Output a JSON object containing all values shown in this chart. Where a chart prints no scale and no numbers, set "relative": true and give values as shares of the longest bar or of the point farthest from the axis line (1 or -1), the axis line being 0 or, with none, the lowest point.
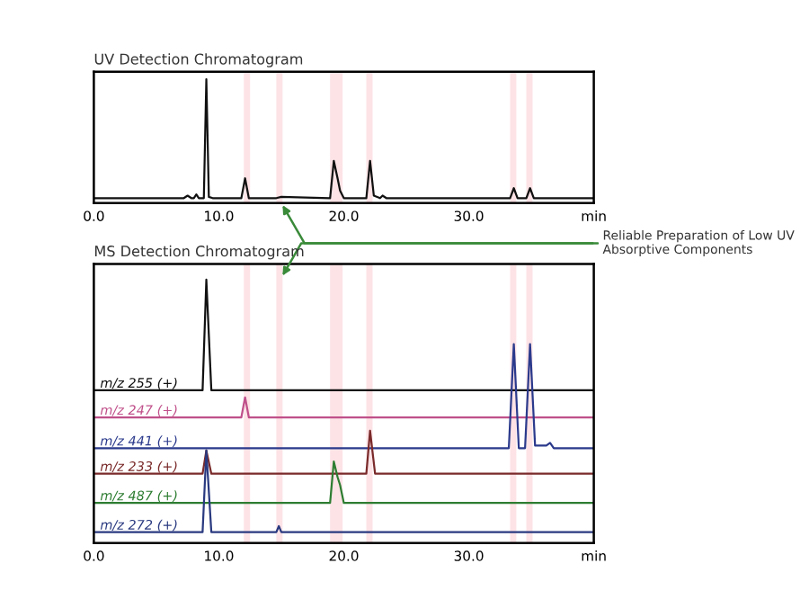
{
  "chart_data": [
    {
      "type": "line",
      "title": "UV Detection Chromatogram",
      "relative": true,
      "xlim": [
        0,
        40
      ],
      "xticks": [
        {
          "value": 0,
          "label": "0.0"
        },
        {
          "value": 10,
          "label": "10.0"
        },
        {
          "value": 20,
          "label": "20.0"
        },
        {
          "value": 30,
          "label": "30.0"
        },
        {
          "value": 40,
          "label": "min"
        }
      ],
      "legend": false,
      "grid": false,
      "bands": [
        {
          "axis": "x",
          "from": 12.0,
          "to": 12.5,
          "color": "#fde3e6"
        },
        {
          "axis": "x",
          "from": 14.6,
          "to": 15.1,
          "color": "#fde3e6"
        },
        {
          "axis": "x",
          "from": 18.9,
          "to": 19.9,
          "color": "#fde3e6"
        },
        {
          "axis": "x",
          "from": 21.8,
          "to": 22.3,
          "color": "#fde3e6"
        },
        {
          "axis": "x",
          "from": 33.3,
          "to": 33.8,
          "color": "#fde3e6"
        },
        {
          "axis": "x",
          "from": 34.6,
          "to": 35.1,
          "color": "#fde3e6"
        }
      ],
      "annotations": [
        {
          "text": "Reliable Preparation of Low UV\nAbsorptive Components",
          "x": 15,
          "y": 0
        }
      ],
      "series": [
        {
          "color": "#111111",
          "x": [
            0,
            7.2,
            7.5,
            7.8,
            8.0,
            8.2,
            8.4,
            8.8,
            9.0,
            9.2,
            9.5,
            11.8,
            12.1,
            12.4,
            14.6,
            15.0,
            18.9,
            19.2,
            19.5,
            19.7,
            20.0,
            21.8,
            22.1,
            22.4,
            22.9,
            23.1,
            23.4,
            33.3,
            33.6,
            33.9,
            34.6,
            34.9,
            35.2,
            40
          ],
          "values": [
            0.04,
            0.04,
            0.06,
            0.04,
            0.04,
            0.07,
            0.04,
            0.04,
            1.0,
            0.05,
            0.04,
            0.04,
            0.2,
            0.04,
            0.04,
            0.05,
            0.04,
            0.34,
            0.2,
            0.1,
            0.04,
            0.04,
            0.34,
            0.06,
            0.04,
            0.06,
            0.04,
            0.04,
            0.12,
            0.04,
            0.04,
            0.12,
            0.04,
            0.04
          ]
        }
      ]
    },
    {
      "type": "line",
      "title": "MS Detection Chromatogram",
      "relative": true,
      "xlim": [
        0,
        40
      ],
      "xticks": [
        {
          "value": 0,
          "label": "0.0"
        },
        {
          "value": 10,
          "label": "10.0"
        },
        {
          "value": 20,
          "label": "20.0"
        },
        {
          "value": 30,
          "label": "30.0"
        },
        {
          "value": 40,
          "label": "min"
        }
      ],
      "legend": false,
      "grid": false,
      "bands": [
        {
          "axis": "x",
          "from": 12.0,
          "to": 12.5,
          "color": "#fde3e6"
        },
        {
          "axis": "x",
          "from": 14.6,
          "to": 15.1,
          "color": "#fde3e6"
        },
        {
          "axis": "x",
          "from": 18.9,
          "to": 19.9,
          "color": "#fde3e6"
        },
        {
          "axis": "x",
          "from": 21.8,
          "to": 22.3,
          "color": "#fde3e6"
        },
        {
          "axis": "x",
          "from": 33.3,
          "to": 33.8,
          "color": "#fde3e6"
        },
        {
          "axis": "x",
          "from": 34.6,
          "to": 35.1,
          "color": "#fde3e6"
        }
      ],
      "series": [
        {
          "name": "m/z 255 (+)",
          "color": "#111111",
          "x": [
            0,
            8.7,
            9.0,
            9.4,
            40
          ],
          "values": [
            0.58,
            0.58,
            1.0,
            0.58,
            0.58
          ]
        },
        {
          "name": "m/z 247 (+)",
          "color": "#c0508a",
          "x": [
            0,
            11.8,
            12.1,
            12.4,
            40
          ],
          "values": [
            0.477,
            0.477,
            0.553,
            0.477,
            0.477
          ]
        },
        {
          "name": "m/z 441 (+)",
          "color": "#2b3a8c",
          "x": [
            0,
            33.2,
            33.6,
            34.0,
            34.5,
            34.9,
            35.3,
            36.2,
            36.5,
            36.8,
            40
          ],
          "values": [
            0.36,
            0.36,
            0.755,
            0.36,
            0.36,
            0.755,
            0.37,
            0.37,
            0.38,
            0.36,
            0.36
          ]
        },
        {
          "name": "m/z 233 (+)",
          "color": "#7a2a2a",
          "x": [
            0,
            8.7,
            9.0,
            9.4,
            21.8,
            22.1,
            22.5,
            40
          ],
          "values": [
            0.263,
            0.263,
            0.351,
            0.263,
            0.263,
            0.426,
            0.263,
            0.263
          ]
        },
        {
          "name": "m/z 487 (+)",
          "color": "#2e7d32",
          "x": [
            0,
            18.9,
            19.2,
            19.5,
            19.7,
            20.0,
            40
          ],
          "values": [
            0.152,
            0.152,
            0.309,
            0.25,
            0.22,
            0.152,
            0.152
          ]
        },
        {
          "name": "m/z 272 (+)",
          "color": "#2a3a80",
          "x": [
            0,
            8.7,
            9.0,
            9.4,
            14.6,
            14.8,
            15.0,
            40
          ],
          "values": [
            0.041,
            0.041,
            0.351,
            0.041,
            0.041,
            0.064,
            0.041,
            0.041
          ]
        }
      ]
    }
  ]
}
